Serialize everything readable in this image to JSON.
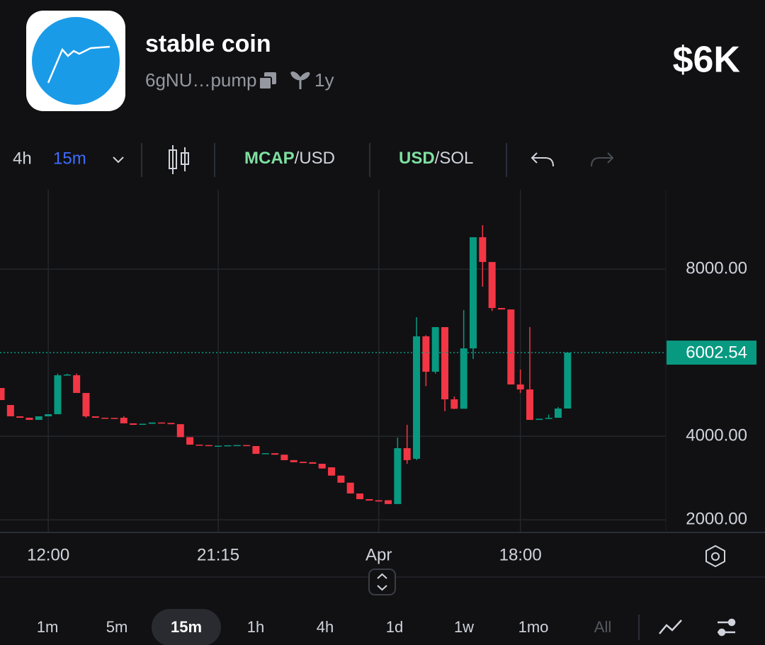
{
  "header": {
    "title": "stable coin",
    "address": "6gNU…pump",
    "age": "1y",
    "market_cap": "$6K"
  },
  "toolbar": {
    "interval": "4h",
    "resolution": "15m",
    "mcap": "MCAP",
    "mcap_quote": "/USD",
    "usd": "USD",
    "usd_quote": "/SOL"
  },
  "chart_data": {
    "type": "candlestick",
    "categories": [
      null,
      null,
      null,
      null,
      null,
      "12:00",
      null,
      null,
      null,
      null,
      null,
      null,
      null,
      null,
      null,
      null,
      null,
      null,
      null,
      null,
      null,
      null,
      null,
      "21:15",
      null,
      null,
      null,
      null,
      null,
      null,
      null,
      null,
      null,
      null,
      null,
      null,
      null,
      null,
      null,
      null,
      "Apr",
      null,
      null,
      null,
      null,
      null,
      null,
      null,
      null,
      null,
      null,
      null,
      null,
      null,
      null,
      "18:00",
      null,
      null,
      null,
      null,
      null
    ],
    "open": [
      5156,
      4749,
      4478,
      4444,
      4393,
      4478,
      4529,
      5461,
      5461,
      5037,
      4478,
      4444,
      4440,
      4444,
      4310,
      4275,
      4300,
      4330,
      4320,
      4290,
      3980,
      3800,
      3790,
      3767,
      3780,
      3785,
      3790,
      3767,
      3580,
      3595,
      3560,
      3430,
      3390,
      3380,
      3343,
      3258,
      3060,
      2890,
      2632,
      2496,
      2470,
      2470,
      2380,
      3716,
      3462,
      6392,
      5545,
      6613,
      4885,
      4660,
      6104,
      8764,
      8171,
      7070,
      7035,
      5240,
      5122,
      4393,
      4420,
      4444,
      4665
    ],
    "high": [
      5156,
      4749,
      4478,
      4444,
      4478,
      4529,
      5500,
      5500,
      5500,
      5037,
      4478,
      4444,
      4440,
      4478,
      4310,
      4300,
      4330,
      4330,
      4320,
      4290,
      3980,
      3800,
      3790,
      3775,
      3785,
      3790,
      3790,
      3767,
      3595,
      3595,
      3560,
      3430,
      3390,
      3380,
      3343,
      3258,
      3060,
      2890,
      2632,
      2496,
      2470,
      2470,
      3970,
      4275,
      6850,
      6420,
      6613,
      6613,
      4950,
      7020,
      8764,
      9052,
      8171,
      7070,
      7035,
      5600,
      6613,
      4420,
      4520,
      4700,
      6002.54
    ],
    "low": [
      4868,
      4478,
      4444,
      4393,
      4393,
      4478,
      4529,
      5461,
      5037,
      4444,
      4444,
      4440,
      4420,
      4310,
      4275,
      4275,
      4300,
      4320,
      4290,
      3980,
      3800,
      3790,
      3780,
      3767,
      3780,
      3785,
      3767,
      3580,
      3580,
      3560,
      3430,
      3380,
      3360,
      3343,
      3230,
      3060,
      2890,
      2632,
      2496,
      2462,
      2440,
      2380,
      2380,
      3343,
      3430,
      5200,
      5500,
      4600,
      4648,
      4660,
      5850,
      7580,
      7000,
      7035,
      5240,
      5037,
      4393,
      4393,
      4420,
      4444,
      4665
    ],
    "close": [
      4868,
      4478,
      4444,
      4393,
      4478,
      4529,
      5461,
      5478,
      5037,
      4478,
      4444,
      4440,
      4420,
      4310,
      4275,
      4300,
      4330,
      4320,
      4290,
      3980,
      3800,
      3790,
      3780,
      3775,
      3785,
      3790,
      3767,
      3580,
      3595,
      3560,
      3430,
      3380,
      3360,
      3343,
      3230,
      3060,
      2890,
      2632,
      2496,
      2462,
      2440,
      2380,
      3716,
      3430,
      6392,
      5545,
      6613,
      4885,
      4660,
      6104,
      8764,
      8171,
      7070,
      7035,
      5240,
      5122,
      4393,
      4420,
      4440,
      4665,
      6002.54
    ],
    "up_color": "#089981",
    "down_color": "#f23645",
    "ylim": [
      1700,
      9900
    ],
    "yticks": [
      {
        "value": 2000,
        "label": "2000.00"
      },
      {
        "value": 4000,
        "label": "4000.00"
      },
      {
        "value": 8000,
        "label": "8000.00"
      }
    ],
    "grid": true,
    "last_price": 6002.54
  },
  "range_bar": {
    "options": [
      "1m",
      "5m",
      "15m",
      "1h",
      "4h",
      "1d",
      "1w",
      "1mo",
      "All"
    ],
    "selected": "15m",
    "disabled": "All"
  }
}
